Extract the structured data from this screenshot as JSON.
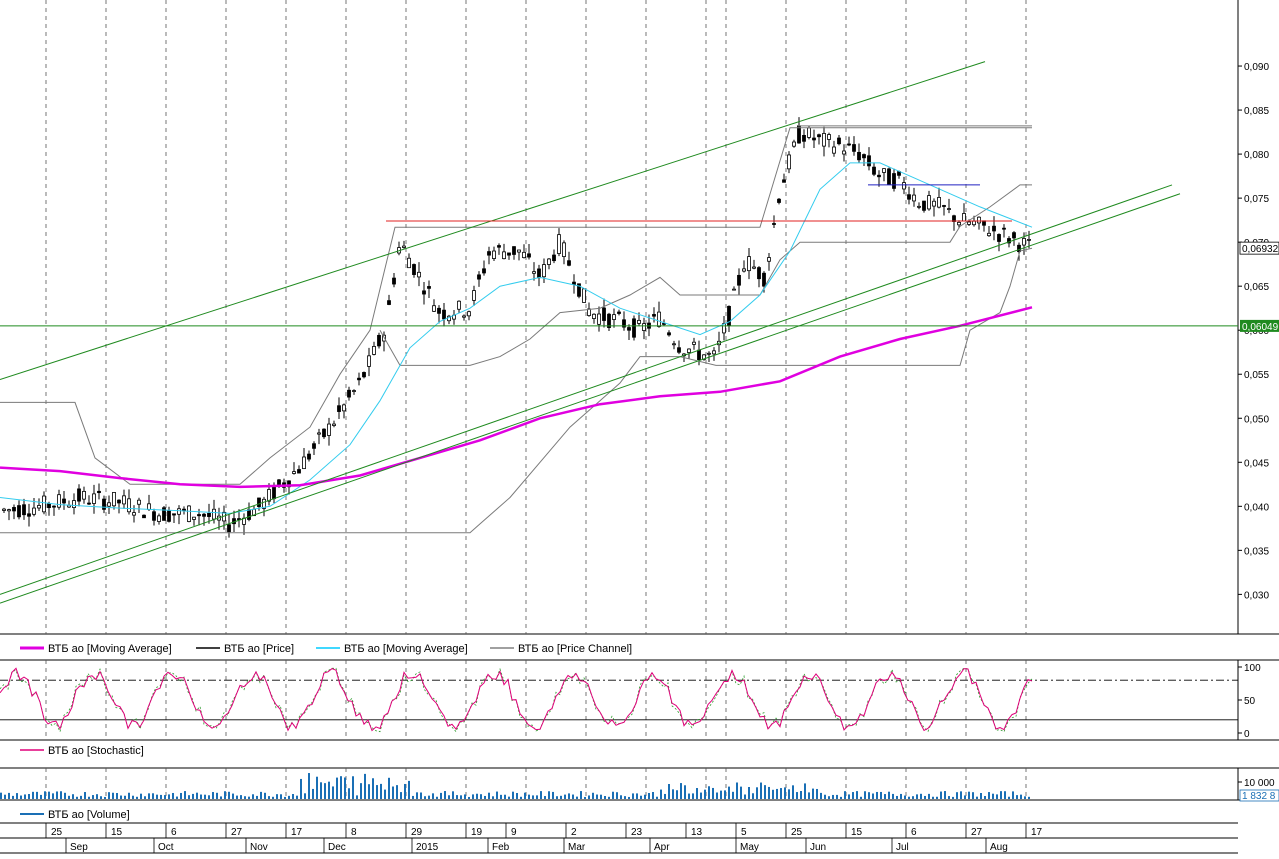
{
  "chart_data": [
    {
      "type": "candlestick",
      "panel": "price",
      "y_ticks": [
        "0,030",
        "0,035",
        "0,040",
        "0,045",
        "0,050",
        "0,055",
        "0,060",
        "0,065",
        "0,070",
        "0,075",
        "0,080",
        "0,085",
        "0,090"
      ],
      "ylim": [
        0.0255,
        0.0975
      ],
      "last_price_label": "0,06932",
      "horizontal_line_label": "0,06049",
      "horizontal_line_value": 0.06049,
      "resistance_red": 0.0724,
      "resistance_blue": 0.0765,
      "price_channel_top_right": 0.0832,
      "legend": [
        {
          "label": "ВТБ ао [Moving Average]",
          "color": "#e000e0"
        },
        {
          "label": "ВТБ ао [Price]",
          "color": "#000000"
        },
        {
          "label": "ВТБ ао [Moving Average]",
          "color": "#00ccff"
        },
        {
          "label": "ВТБ ао [Price Channel]",
          "color": "#808080"
        }
      ],
      "ma_long": [
        [
          0,
          0.0444
        ],
        [
          60,
          0.044
        ],
        [
          120,
          0.0432
        ],
        [
          180,
          0.0425
        ],
        [
          240,
          0.0422
        ],
        [
          300,
          0.0424
        ],
        [
          360,
          0.0435
        ],
        [
          420,
          0.0455
        ],
        [
          480,
          0.0475
        ],
        [
          540,
          0.05
        ],
        [
          600,
          0.0516
        ],
        [
          660,
          0.0525
        ],
        [
          720,
          0.053
        ],
        [
          780,
          0.0542
        ],
        [
          840,
          0.057
        ],
        [
          900,
          0.059
        ],
        [
          960,
          0.0605
        ],
        [
          1032,
          0.0626
        ]
      ],
      "ma_short": [
        [
          0,
          0.041
        ],
        [
          60,
          0.0402
        ],
        [
          120,
          0.0398
        ],
        [
          180,
          0.0395
        ],
        [
          230,
          0.0392
        ],
        [
          270,
          0.04
        ],
        [
          310,
          0.043
        ],
        [
          350,
          0.047
        ],
        [
          380,
          0.052
        ],
        [
          410,
          0.058
        ],
        [
          440,
          0.061
        ],
        [
          470,
          0.0625
        ],
        [
          500,
          0.065
        ],
        [
          540,
          0.066
        ],
        [
          580,
          0.065
        ],
        [
          620,
          0.0625
        ],
        [
          660,
          0.061
        ],
        [
          700,
          0.0595
        ],
        [
          730,
          0.061
        ],
        [
          760,
          0.064
        ],
        [
          790,
          0.069
        ],
        [
          820,
          0.076
        ],
        [
          850,
          0.079
        ],
        [
          880,
          0.079
        ],
        [
          910,
          0.0775
        ],
        [
          940,
          0.076
        ],
        [
          980,
          0.074
        ],
        [
          1032,
          0.0717
        ]
      ],
      "candles_summary": "daily candlesticks Aug 2014 – Aug 2015"
    },
    {
      "type": "line",
      "panel": "stochastic",
      "legend": [
        {
          "label": "ВТБ ао [Stochastic]",
          "color": "#e0007a"
        }
      ],
      "y_ticks": [
        "0",
        "50",
        "100"
      ],
      "ylim": [
        0,
        100
      ],
      "levels": [
        20,
        80
      ]
    },
    {
      "type": "bar",
      "panel": "volume",
      "legend": [
        {
          "label": "ВТБ ао [Volume]",
          "color": "#1a6fb5"
        }
      ],
      "y_ticks": [
        "10 000"
      ],
      "last_label": "1 832 8"
    }
  ],
  "x_axis": {
    "days": [
      "25",
      "15",
      "6",
      "27",
      "17",
      "8",
      "29",
      "19",
      "9",
      "2",
      "23",
      "13",
      "5",
      "25",
      "15",
      "6",
      "27",
      "17"
    ],
    "months": [
      "Sep",
      "Oct",
      "Nov",
      "Dec",
      "2015",
      "Feb",
      "Mar",
      "Apr",
      "May",
      "Jun",
      "Jul",
      "Aug"
    ]
  },
  "colors": {
    "ma_long": "#e000e0",
    "ma_short": "#33ccee",
    "channel": "#7a7a7a",
    "trend": "#1f8a1f",
    "red": "#e02020",
    "blue": "#2020c0",
    "stoch_k": "#e0007a",
    "stoch_d": "#2a9a2a",
    "volume": "#1a6fb5",
    "hline": "#1f8a1f",
    "hline_label_bg": "#1f8a1f"
  }
}
